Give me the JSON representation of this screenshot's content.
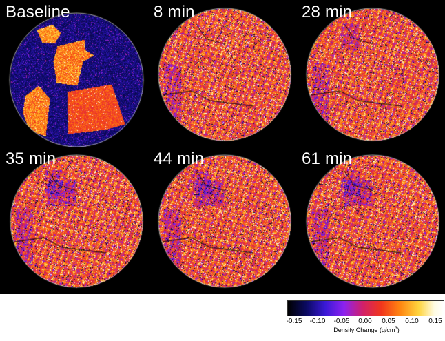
{
  "figure": {
    "panels": [
      {
        "label": "Baseline",
        "variant": "baseline"
      },
      {
        "label": "8 min",
        "variant": "noise"
      },
      {
        "label": "28 min",
        "variant": "noise"
      },
      {
        "label": "35 min",
        "variant": "noise"
      },
      {
        "label": "44 min",
        "variant": "noise"
      },
      {
        "label": "61 min",
        "variant": "noise"
      }
    ],
    "colorbar": {
      "ticks": [
        "-0.15",
        "-0.10",
        "-0.05",
        "0.00",
        "0.05",
        "0.10",
        "0.15"
      ],
      "title_prefix": "Density Change (g/cm",
      "title_superscript": "3",
      "title_suffix": ")",
      "range": [
        -0.15,
        0.15
      ]
    },
    "colors": {
      "background": "#000000",
      "circle_outline": "#c9c9c9",
      "low": "#000000",
      "mid_low": "#3a19d6",
      "mid": "#d1206a",
      "mid_high": "#ff8511",
      "high": "#ffffff"
    }
  }
}
